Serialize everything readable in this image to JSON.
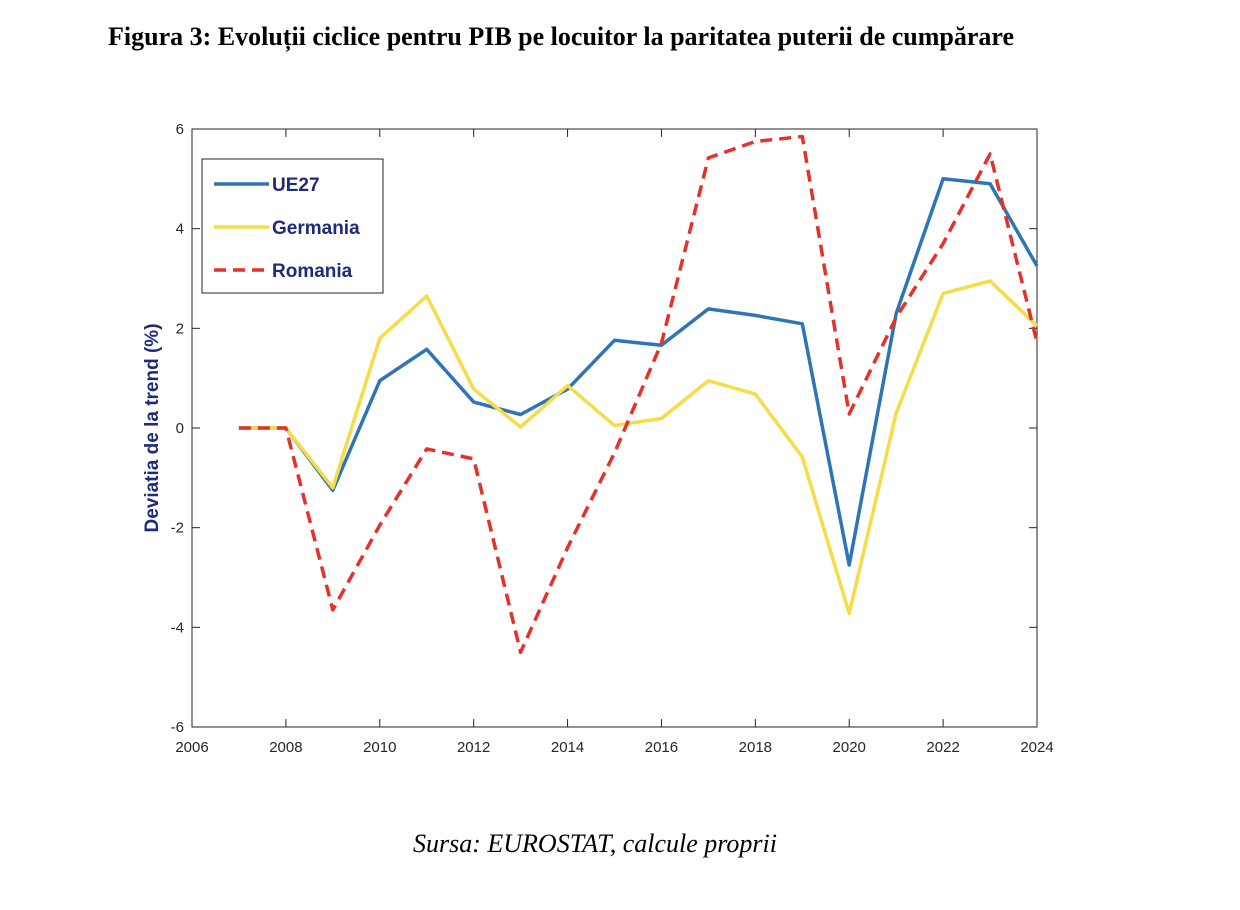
{
  "figure": {
    "title": "Figura 3: Evoluții ciclice pentru PIB pe locuitor la paritatea puterii de cumpărare",
    "source": "Sursa: EUROSTAT, calcule proprii"
  },
  "colors": {
    "label_text": "#1f2a7a",
    "axis": "#262626"
  },
  "chart_data": {
    "type": "line",
    "title": "",
    "xlabel": "",
    "ylabel": "Deviatia de la trend (%)",
    "xlim": [
      2006,
      2024
    ],
    "ylim": [
      -6,
      6
    ],
    "xticks": [
      "2006",
      "2008",
      "2010",
      "2012",
      "2014",
      "2016",
      "2018",
      "2020",
      "2022",
      "2024"
    ],
    "yticks": [
      "6",
      "4",
      "2",
      "0",
      "-2",
      "-4",
      "-6"
    ],
    "grid": false,
    "legend_position": "top-left",
    "x": [
      2007,
      2008,
      2009,
      2010,
      2011,
      2012,
      2013,
      2014,
      2015,
      2016,
      2017,
      2018,
      2019,
      2020,
      2021,
      2022,
      2023,
      2024
    ],
    "series": [
      {
        "name": "UE27",
        "color": "#2e75b6",
        "style": "solid",
        "values": [
          0,
          0,
          -1.25,
          0.95,
          1.58,
          0.52,
          0.27,
          0.78,
          1.76,
          1.66,
          2.39,
          2.26,
          2.09,
          -2.75,
          2.3,
          5.0,
          4.9,
          3.25
        ]
      },
      {
        "name": "Germania",
        "color": "#f6dc48",
        "style": "solid",
        "values": [
          0,
          0,
          -1.2,
          1.8,
          2.65,
          0.78,
          0.02,
          0.85,
          0.05,
          0.19,
          0.95,
          0.68,
          -0.58,
          -3.72,
          0.3,
          2.7,
          2.95,
          2.05
        ]
      },
      {
        "name": "Romania",
        "color": "#e4322b",
        "style": "dashed",
        "values": [
          0,
          0,
          -3.65,
          -1.95,
          -0.42,
          -0.62,
          -4.5,
          -2.4,
          -0.5,
          1.7,
          5.42,
          5.75,
          5.85,
          0.28,
          2.22,
          3.7,
          5.5,
          1.72
        ]
      }
    ]
  }
}
